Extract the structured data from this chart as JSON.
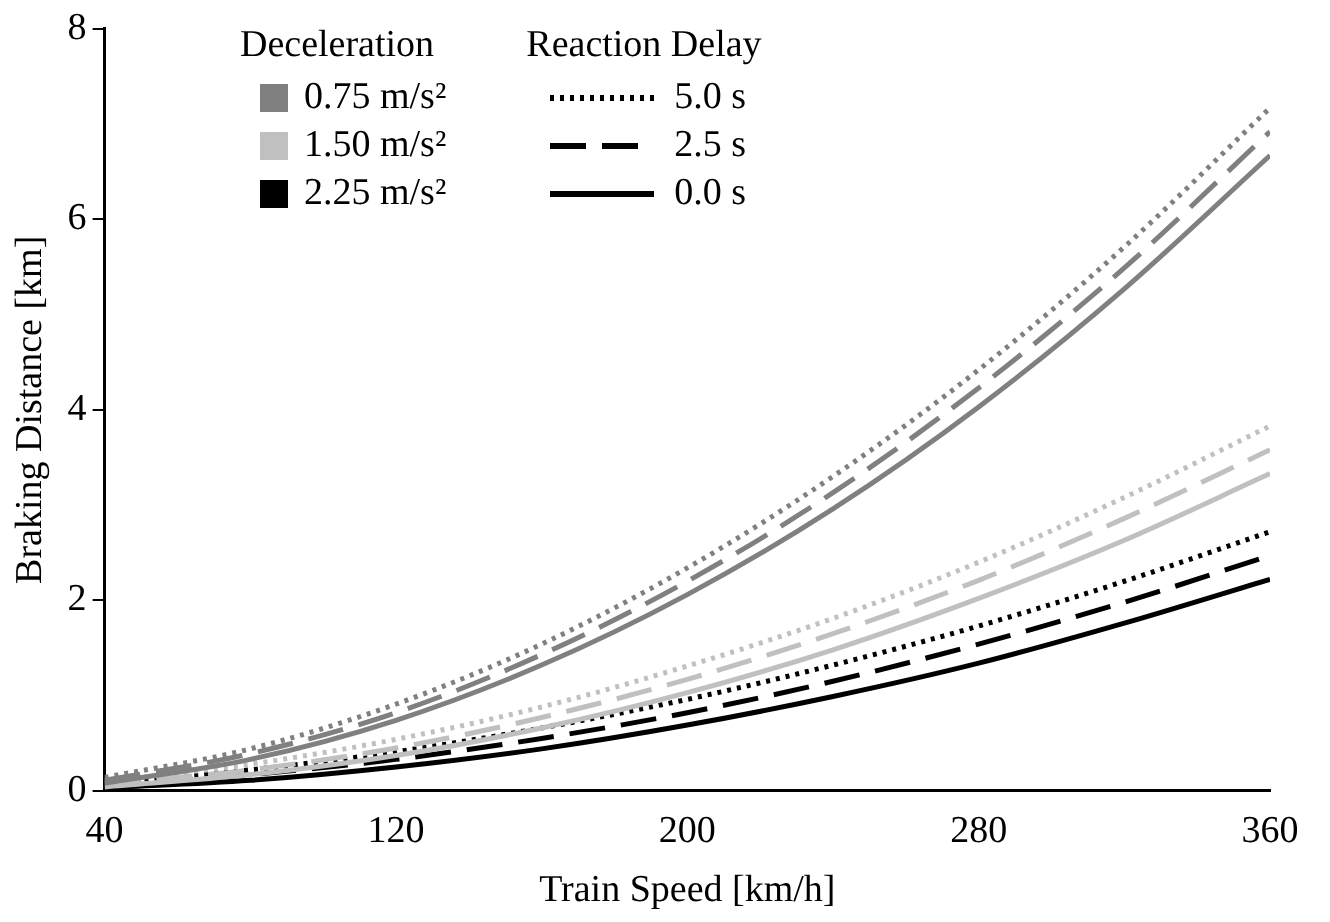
{
  "chart_data": {
    "type": "line",
    "xlabel": "Train Speed [km/h]",
    "ylabel": "Braking Distance [km]",
    "x": [
      40,
      80,
      120,
      160,
      200,
      240,
      280,
      320,
      360
    ],
    "xlim": [
      40,
      360
    ],
    "xticks": [
      40,
      120,
      200,
      280,
      360
    ],
    "ylim": [
      0,
      8
    ],
    "yticks": [
      0,
      2,
      4,
      6,
      8
    ],
    "grid": false,
    "legend": "top left",
    "marker": "none",
    "annotations": [
      "Deceleration",
      "Reaction Delay"
    ],
    "series": [
      {
        "color": "#808080",
        "line_style": "dotted",
        "values": [
          0.14,
          0.44,
          0.91,
          1.54,
          2.34,
          3.3,
          4.42,
          5.71,
          7.17
        ]
      },
      {
        "color": "#808080",
        "line_style": "dashed",
        "values": [
          0.11,
          0.39,
          0.82,
          1.43,
          2.2,
          3.13,
          4.23,
          5.49,
          6.92
        ]
      },
      {
        "color": "#808080",
        "line_style": "solid",
        "values": [
          0.08,
          0.33,
          0.74,
          1.32,
          2.06,
          2.96,
          4.03,
          5.27,
          6.67
        ]
      },
      {
        "color": "#c0c0c0",
        "line_style": "dotted",
        "values": [
          0.1,
          0.28,
          0.54,
          0.88,
          1.31,
          1.81,
          2.4,
          3.08,
          3.83
        ]
      },
      {
        "color": "#c0c0c0",
        "line_style": "dashed",
        "values": [
          0.07,
          0.22,
          0.45,
          0.77,
          1.17,
          1.65,
          2.21,
          2.86,
          3.58
        ]
      },
      {
        "color": "#c0c0c0",
        "line_style": "solid",
        "values": [
          0.04,
          0.17,
          0.37,
          0.66,
          1.03,
          1.48,
          2.02,
          2.63,
          3.33
        ]
      },
      {
        "color": "#000000",
        "line_style": "dotted",
        "values": [
          0.08,
          0.22,
          0.41,
          0.66,
          0.96,
          1.32,
          1.73,
          2.2,
          2.72
        ]
      },
      {
        "color": "#000000",
        "line_style": "dashed",
        "values": [
          0.06,
          0.17,
          0.33,
          0.55,
          0.82,
          1.15,
          1.54,
          1.98,
          2.47
        ]
      },
      {
        "color": "#000000",
        "line_style": "solid",
        "values": [
          0.03,
          0.11,
          0.25,
          0.44,
          0.69,
          0.99,
          1.34,
          1.76,
          2.22
        ]
      },
      {
        "name": "0.75 m/s²",
        "color": "#808080",
        "line_style": "solid",
        "marker": "square",
        "values": [
          null,
          null,
          null,
          null,
          null,
          null,
          null,
          null,
          null
        ]
      },
      {
        "name": "1.50 m/s²",
        "color": "#c0c0c0",
        "line_style": "solid",
        "marker": "square",
        "values": [
          null,
          null,
          null,
          null,
          null,
          null,
          null,
          null,
          null
        ]
      },
      {
        "name": "2.25 m/s²",
        "color": "#000000",
        "line_style": "solid",
        "marker": "square",
        "values": [
          null,
          null,
          null,
          null,
          null,
          null,
          null,
          null,
          null
        ]
      },
      {
        "name": "5.0 s",
        "color": "#000000",
        "line_style": "dotted",
        "values": [
          null,
          null,
          null,
          null,
          null,
          null,
          null,
          null,
          null
        ]
      },
      {
        "name": "2.5 s",
        "color": "#000000",
        "line_style": "dashed",
        "values": [
          null,
          null,
          null,
          null,
          null,
          null,
          null,
          null,
          null
        ]
      },
      {
        "name": "0.0 s",
        "color": "#000000",
        "line_style": "solid",
        "values": [
          null,
          null,
          null,
          null,
          null,
          null,
          null,
          null,
          null
        ]
      }
    ]
  }
}
